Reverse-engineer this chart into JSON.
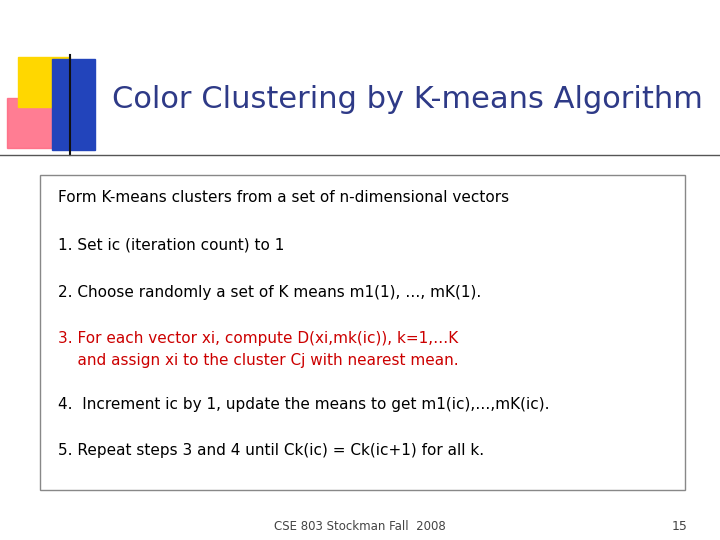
{
  "title": "Color Clustering by K-means Algorithm",
  "title_color": "#2E3A87",
  "title_fontsize": 22,
  "subtitle": "Form K-means clusters from a set of n-dimensional vectors",
  "line1": "1. Set ic (iteration count) to 1",
  "line2": "2. Choose randomly a set of K means m1(1), …, mK(1).",
  "line3a": "3. For each vector xi, compute D(xi,mk(ic)), k=1,…K",
  "line3b": "    and assign xi to the cluster Cj with nearest mean.",
  "line4": "4.  Increment ic by 1, update the means to get m1(ic),…,mK(ic).",
  "line5": "5. Repeat steps 3 and 4 until Ck(ic) = Ck(ic+1) for all k.",
  "red_color": "#CC0000",
  "black_color": "#000000",
  "footer": "CSE 803 Stockman Fall  2008",
  "page_number": "15",
  "bg_color": "#FFFFFF",
  "box_edge_color": "#888888",
  "title_font": "DejaVu Sans",
  "body_font": "DejaVu Sans",
  "body_fontsize": 11,
  "hline_color": "#555555",
  "yellow_color": "#FFD700",
  "pink_color": "#FF6680",
  "blue_color": "#2244BB"
}
